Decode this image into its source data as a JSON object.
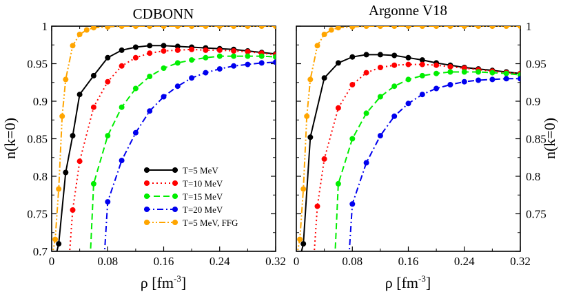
{
  "chart_data": {
    "type": "line",
    "xlim": [
      0,
      0.32
    ],
    "ylim": [
      0.7,
      1.0
    ],
    "xticks": [
      "0",
      "0.08",
      "0.16",
      "0.24",
      "0.32"
    ],
    "yticks_left": [
      "0.7",
      "0.75",
      "0.8",
      "0.85",
      "0.9",
      "0.95",
      "1"
    ],
    "yticks_right": [
      "0.75",
      "0.8",
      "0.85",
      "0.9",
      "0.95",
      "1"
    ],
    "xlabel": "ρ [fm",
    "xlabel_sup": "-3",
    "xlabel_end": "]",
    "ylabel": "n(k=0)",
    "legend": [
      {
        "name": "T=5 MeV",
        "color": "#000000",
        "dash": "solid"
      },
      {
        "name": "T=10 MeV",
        "color": "#ff0000",
        "dash": "dot"
      },
      {
        "name": "T=15 MeV",
        "color": "#00ee00",
        "dash": "dash"
      },
      {
        "name": "T=20 MeV",
        "color": "#0000ee",
        "dash": "dashdot"
      },
      {
        "name": "T=5 MeV, FFG",
        "color": "#ffa500",
        "dash": "dashdotdot"
      }
    ],
    "panels": [
      {
        "title": "CDBONN",
        "series": [
          {
            "name": "T=5 MeV",
            "x": [
              0.01,
              0.02,
              0.03,
              0.04,
              0.06,
              0.08,
              0.1,
              0.12,
              0.14,
              0.16,
              0.18,
              0.2,
              0.22,
              0.24,
              0.26,
              0.28,
              0.3,
              0.32
            ],
            "y": [
              0.71,
              0.805,
              0.854,
              0.909,
              0.934,
              0.958,
              0.968,
              0.972,
              0.974,
              0.974,
              0.973,
              0.972,
              0.971,
              0.97,
              0.969,
              0.967,
              0.965,
              0.963
            ]
          },
          {
            "name": "T=10 MeV",
            "x": [
              0.03,
              0.04,
              0.06,
              0.08,
              0.1,
              0.12,
              0.14,
              0.16,
              0.18,
              0.2,
              0.22,
              0.24,
              0.26,
              0.28,
              0.3,
              0.32
            ],
            "y": [
              0.755,
              0.82,
              0.892,
              0.926,
              0.947,
              0.958,
              0.964,
              0.967,
              0.968,
              0.969,
              0.968,
              0.968,
              0.967,
              0.966,
              0.964,
              0.962
            ]
          },
          {
            "name": "T=15 MeV",
            "x": [
              0.06,
              0.08,
              0.1,
              0.12,
              0.14,
              0.16,
              0.18,
              0.2,
              0.22,
              0.24,
              0.26,
              0.28,
              0.3,
              0.32
            ],
            "y": [
              0.79,
              0.854,
              0.892,
              0.917,
              0.933,
              0.944,
              0.951,
              0.955,
              0.958,
              0.96,
              0.96,
              0.96,
              0.96,
              0.959
            ]
          },
          {
            "name": "T=20 MeV",
            "x": [
              0.08,
              0.1,
              0.12,
              0.14,
              0.16,
              0.18,
              0.2,
              0.22,
              0.24,
              0.26,
              0.28,
              0.3,
              0.32
            ],
            "y": [
              0.766,
              0.821,
              0.858,
              0.887,
              0.906,
              0.92,
              0.931,
              0.938,
              0.943,
              0.947,
              0.949,
              0.951,
              0.952
            ]
          },
          {
            "name": "T=5 MeV, FFG",
            "x": [
              0.005,
              0.01,
              0.015,
              0.02,
              0.03,
              0.04,
              0.05,
              0.06,
              0.08,
              0.1,
              0.12,
              0.14,
              0.16,
              0.18,
              0.2,
              0.22,
              0.24,
              0.26,
              0.28,
              0.3,
              0.32
            ],
            "y": [
              0.716,
              0.783,
              0.88,
              0.929,
              0.974,
              0.989,
              0.995,
              0.998,
              0.999,
              1.0,
              1.0,
              1.0,
              1.0,
              1.0,
              1.0,
              1.0,
              1.0,
              1.0,
              1.0,
              1.0,
              1.0
            ]
          }
        ]
      },
      {
        "title": "Argonne V18",
        "series": [
          {
            "name": "T=5 MeV",
            "x": [
              0.01,
              0.02,
              0.04,
              0.06,
              0.08,
              0.1,
              0.12,
              0.14,
              0.16,
              0.18,
              0.2,
              0.22,
              0.24,
              0.26,
              0.28,
              0.3,
              0.32
            ],
            "y": [
              0.71,
              0.852,
              0.931,
              0.951,
              0.959,
              0.962,
              0.962,
              0.961,
              0.958,
              0.955,
              0.951,
              0.948,
              0.945,
              0.943,
              0.941,
              0.939,
              0.937
            ]
          },
          {
            "name": "T=10 MeV",
            "x": [
              0.03,
              0.04,
              0.06,
              0.08,
              0.1,
              0.12,
              0.14,
              0.16,
              0.18,
              0.2,
              0.22,
              0.24,
              0.26,
              0.28,
              0.3,
              0.32
            ],
            "y": [
              0.76,
              0.823,
              0.891,
              0.922,
              0.938,
              0.945,
              0.948,
              0.949,
              0.949,
              0.948,
              0.946,
              0.944,
              0.942,
              0.94,
              0.938,
              0.937
            ]
          },
          {
            "name": "T=15 MeV",
            "x": [
              0.06,
              0.08,
              0.1,
              0.12,
              0.14,
              0.16,
              0.18,
              0.2,
              0.22,
              0.24,
              0.26,
              0.28,
              0.3,
              0.32
            ],
            "y": [
              0.79,
              0.85,
              0.884,
              0.906,
              0.92,
              0.929,
              0.934,
              0.937,
              0.939,
              0.939,
              0.939,
              0.938,
              0.937,
              0.935
            ]
          },
          {
            "name": "T=20 MeV",
            "x": [
              0.08,
              0.1,
              0.12,
              0.14,
              0.16,
              0.18,
              0.2,
              0.22,
              0.24,
              0.26,
              0.28,
              0.3,
              0.32
            ],
            "y": [
              0.763,
              0.818,
              0.854,
              0.88,
              0.897,
              0.909,
              0.917,
              0.922,
              0.926,
              0.928,
              0.929,
              0.93,
              0.93
            ]
          },
          {
            "name": "T=5 MeV, FFG",
            "x": [
              0.005,
              0.01,
              0.015,
              0.02,
              0.03,
              0.04,
              0.05,
              0.06,
              0.08,
              0.1,
              0.12,
              0.14,
              0.16,
              0.18,
              0.2,
              0.22,
              0.24,
              0.26,
              0.28,
              0.3,
              0.32
            ],
            "y": [
              0.716,
              0.783,
              0.88,
              0.929,
              0.974,
              0.989,
              0.995,
              0.998,
              0.999,
              1.0,
              1.0,
              1.0,
              1.0,
              1.0,
              1.0,
              1.0,
              1.0,
              1.0,
              1.0,
              1.0,
              1.0
            ]
          }
        ]
      }
    ]
  }
}
